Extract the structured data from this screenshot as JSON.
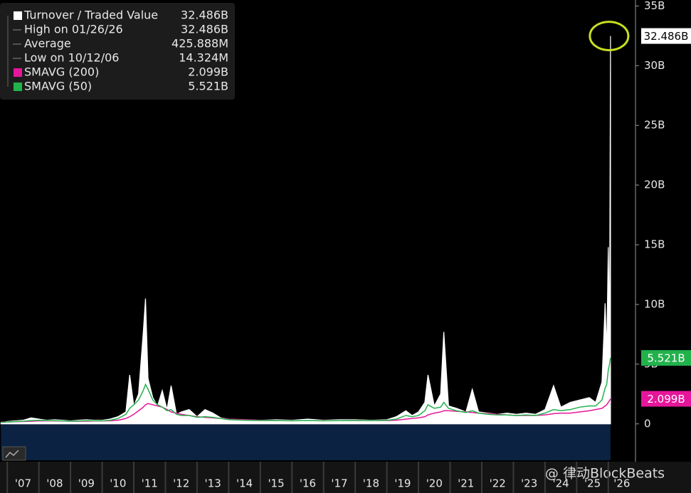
{
  "chart_data": {
    "type": "area-line",
    "x": [
      2006.8,
      2007.0,
      2007.25,
      2007.5,
      2007.75,
      2008.0,
      2008.25,
      2008.5,
      2008.75,
      2009.0,
      2009.25,
      2009.5,
      2009.75,
      2010.0,
      2010.25,
      2010.5,
      2010.75,
      2010.87,
      2011.0,
      2011.15,
      2011.3,
      2011.37,
      2011.45,
      2011.6,
      2011.75,
      2011.9,
      2012.05,
      2012.18,
      2012.35,
      2012.5,
      2012.75,
      2013.0,
      2013.25,
      2013.5,
      2013.75,
      2014.0,
      2014.5,
      2015.0,
      2015.5,
      2016.0,
      2016.5,
      2017.0,
      2017.5,
      2018.0,
      2018.5,
      2019.0,
      2019.3,
      2019.6,
      2019.8,
      2020.0,
      2020.2,
      2020.3,
      2020.5,
      2020.7,
      2020.8,
      2020.95,
      2021.2,
      2021.5,
      2021.7,
      2021.9,
      2022.2,
      2022.5,
      2022.8,
      2023.1,
      2023.4,
      2023.7,
      2024.0,
      2024.27,
      2024.5,
      2024.8,
      2025.1,
      2025.4,
      2025.6,
      2025.8,
      2025.9,
      2025.95,
      2026.0,
      2026.04,
      2026.07
    ],
    "series": [
      {
        "name": "Turnover / Traded Value",
        "color": "#ffffff",
        "last_value_label": "32.486B",
        "values": [
          0.1,
          0.2,
          0.25,
          0.3,
          0.5,
          0.4,
          0.3,
          0.35,
          0.3,
          0.25,
          0.3,
          0.35,
          0.3,
          0.3,
          0.4,
          0.6,
          1.0,
          4.1,
          1.5,
          2.5,
          7.7,
          10.5,
          3.8,
          2.2,
          1.5,
          2.8,
          1.2,
          3.2,
          0.8,
          1.0,
          1.2,
          0.6,
          1.2,
          0.9,
          0.5,
          0.4,
          0.35,
          0.3,
          0.35,
          0.3,
          0.4,
          0.3,
          0.35,
          0.35,
          0.3,
          0.35,
          0.6,
          1.1,
          0.7,
          1.0,
          1.8,
          4.1,
          1.5,
          2.5,
          7.7,
          1.5,
          1.3,
          1.0,
          2.9,
          1.0,
          0.9,
          0.8,
          0.9,
          0.8,
          0.9,
          0.8,
          1.2,
          3.2,
          1.4,
          1.8,
          2.0,
          2.2,
          1.8,
          3.5,
          10.1,
          6.0,
          14.8,
          7.5,
          32.486
        ]
      },
      {
        "name": "SMAVG (200)",
        "color": "#e6169a",
        "last_value_label": "2.099B",
        "values": [
          0.15,
          0.16,
          0.18,
          0.2,
          0.22,
          0.25,
          0.26,
          0.25,
          0.24,
          0.22,
          0.22,
          0.23,
          0.24,
          0.25,
          0.26,
          0.3,
          0.45,
          0.6,
          0.8,
          1.1,
          1.4,
          1.6,
          1.7,
          1.6,
          1.5,
          1.4,
          1.2,
          1.0,
          0.9,
          0.8,
          0.7,
          0.6,
          0.55,
          0.5,
          0.45,
          0.4,
          0.35,
          0.3,
          0.28,
          0.27,
          0.27,
          0.27,
          0.27,
          0.28,
          0.28,
          0.28,
          0.3,
          0.4,
          0.45,
          0.5,
          0.6,
          0.75,
          0.9,
          1.0,
          1.1,
          1.1,
          1.05,
          1.0,
          0.95,
          0.9,
          0.85,
          0.8,
          0.75,
          0.7,
          0.7,
          0.7,
          0.75,
          0.85,
          0.9,
          0.9,
          1.0,
          1.1,
          1.2,
          1.3,
          1.5,
          1.6,
          1.8,
          1.95,
          2.099
        ]
      },
      {
        "name": "SMAVG (50)",
        "color": "#22b24c",
        "last_value_label": "5.521B",
        "values": [
          0.12,
          0.15,
          0.2,
          0.22,
          0.28,
          0.3,
          0.28,
          0.27,
          0.25,
          0.22,
          0.24,
          0.27,
          0.26,
          0.26,
          0.3,
          0.45,
          0.8,
          1.3,
          1.6,
          2.0,
          2.8,
          3.3,
          2.9,
          2.0,
          1.6,
          1.4,
          1.1,
          1.2,
          0.8,
          0.7,
          0.7,
          0.55,
          0.6,
          0.55,
          0.45,
          0.35,
          0.3,
          0.28,
          0.28,
          0.26,
          0.28,
          0.26,
          0.27,
          0.28,
          0.27,
          0.3,
          0.4,
          0.7,
          0.6,
          0.7,
          1.1,
          1.6,
          1.3,
          1.4,
          1.8,
          1.3,
          1.1,
          0.95,
          1.1,
          0.9,
          0.8,
          0.75,
          0.75,
          0.7,
          0.75,
          0.7,
          0.9,
          1.2,
          1.1,
          1.2,
          1.4,
          1.5,
          1.5,
          2.0,
          3.0,
          3.3,
          4.5,
          5.0,
          5.521
        ]
      }
    ],
    "stats": [
      {
        "name": "High on 01/26/26",
        "text": "32.486B"
      },
      {
        "name": "Average",
        "text": "425.888M"
      },
      {
        "name": "Low on 10/12/06",
        "text": "14.324M"
      }
    ],
    "xlim": [
      2006.77,
      2026.86
    ],
    "xticks": [
      {
        "value": 2007,
        "label": "'07"
      },
      {
        "value": 2008,
        "label": "'08"
      },
      {
        "value": 2009,
        "label": "'09"
      },
      {
        "value": 2010,
        "label": "'10"
      },
      {
        "value": 2011,
        "label": "'11"
      },
      {
        "value": 2012,
        "label": "'12"
      },
      {
        "value": 2013,
        "label": "'13"
      },
      {
        "value": 2014,
        "label": "'14"
      },
      {
        "value": 2015,
        "label": "'15"
      },
      {
        "value": 2016,
        "label": "'16"
      },
      {
        "value": 2017,
        "label": "'17"
      },
      {
        "value": 2018,
        "label": "'18"
      },
      {
        "value": 2019,
        "label": "'19"
      },
      {
        "value": 2020,
        "label": "'20"
      },
      {
        "value": 2021,
        "label": "'21"
      },
      {
        "value": 2022,
        "label": "'22"
      },
      {
        "value": 2023,
        "label": "'23"
      },
      {
        "value": 2024,
        "label": "'24"
      },
      {
        "value": 2025,
        "label": "'25"
      },
      {
        "value": 2026,
        "label": "'26"
      }
    ],
    "ylim": [
      -3.05,
      35.5
    ],
    "yticks": [
      0,
      {
        "value": 5,
        "label": "5B"
      },
      {
        "value": 10,
        "label": "10B"
      },
      {
        "value": 15,
        "label": "15B"
      },
      {
        "value": 20,
        "label": "20B"
      },
      {
        "value": 25,
        "label": "25B"
      },
      {
        "value": 30,
        "label": "30B"
      },
      {
        "value": 35,
        "label": "35B"
      }
    ],
    "watermark": "@ 律动BlockBeats"
  }
}
